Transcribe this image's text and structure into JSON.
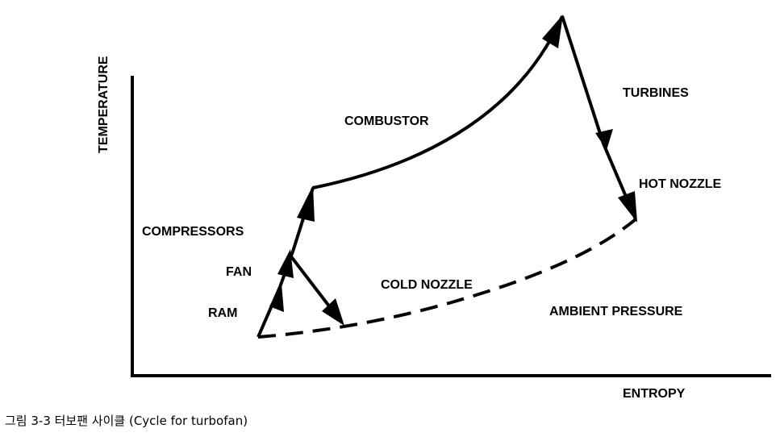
{
  "diagram": {
    "axis_labels": {
      "y": "TEMPERATURE",
      "x": "ENTROPY"
    },
    "labels": {
      "ram": "RAM",
      "fan": "FAN",
      "compressors": "COMPRESSORS",
      "combustor": "COMBUSTOR",
      "turbines": "TURBINES",
      "hot_nozzle": "HOT NOZZLE",
      "cold_nozzle": "COLD NOZZLE",
      "ambient_pressure": "AMBIENT PRESSURE"
    }
  },
  "caption": "그림 3-3 터보팬 사이클 (Cycle for turbofan)"
}
